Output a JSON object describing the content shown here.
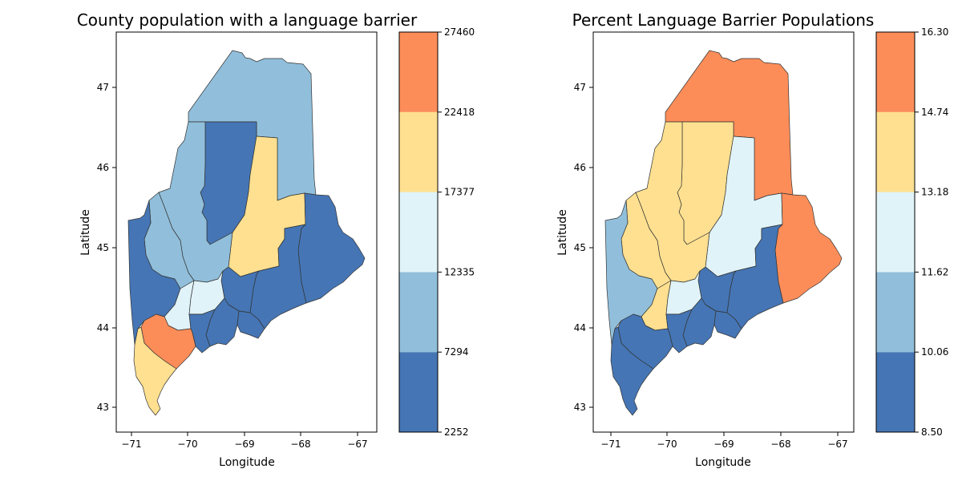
{
  "colors": {
    "c1": "#4575b4",
    "c2": "#91bfdb",
    "c3": "#e0f3f8",
    "c4": "#fee090",
    "c5": "#fc8d59"
  },
  "maps": [
    {
      "title": "County population with a language barrier",
      "xlabel": "Longitude",
      "ylabel": "Latitude",
      "xticks": [
        "−71",
        "−70",
        "−69",
        "−68",
        "−67"
      ],
      "yticks": [
        "43",
        "44",
        "45",
        "46",
        "47"
      ],
      "colorbar_ticks": [
        "2252",
        "7294",
        "12335",
        "17377",
        "22418",
        "27460"
      ],
      "colorbar_bins": [
        "c1",
        "c2",
        "c3",
        "c4",
        "c5"
      ],
      "counties": {
        "york": "c4",
        "cumberland": "c5",
        "oxford": "c1",
        "franklin": "c2",
        "androscoggin": "c3",
        "kennebec": "c3",
        "somerset": "c2",
        "piscataquis": "c1",
        "aroostook": "c2",
        "penobscot": "c4",
        "washington": "c1",
        "hancock": "c1",
        "waldo": "c1",
        "knox": "c1",
        "lincoln": "c1",
        "sagadahoc": "c1"
      }
    },
    {
      "title": "Percent Language Barrier Populations",
      "xlabel": "Longitude",
      "ylabel": "Latitude",
      "xticks": [
        "−71",
        "−70",
        "−69",
        "−68",
        "−67"
      ],
      "yticks": [
        "43",
        "44",
        "45",
        "46",
        "47"
      ],
      "colorbar_ticks": [
        "8.50",
        "10.06",
        "11.62",
        "13.18",
        "14.74",
        "16.30"
      ],
      "colorbar_bins": [
        "c1",
        "c2",
        "c3",
        "c4",
        "c5"
      ],
      "counties": {
        "york": "c1",
        "cumberland": "c1",
        "oxford": "c2",
        "franklin": "c4",
        "androscoggin": "c4",
        "kennebec": "c3",
        "somerset": "c4",
        "piscataquis": "c4",
        "aroostook": "c5",
        "penobscot": "c3",
        "washington": "c5",
        "hancock": "c1",
        "waldo": "c1",
        "knox": "c1",
        "lincoln": "c1",
        "sagadahoc": "c1"
      }
    }
  ]
}
